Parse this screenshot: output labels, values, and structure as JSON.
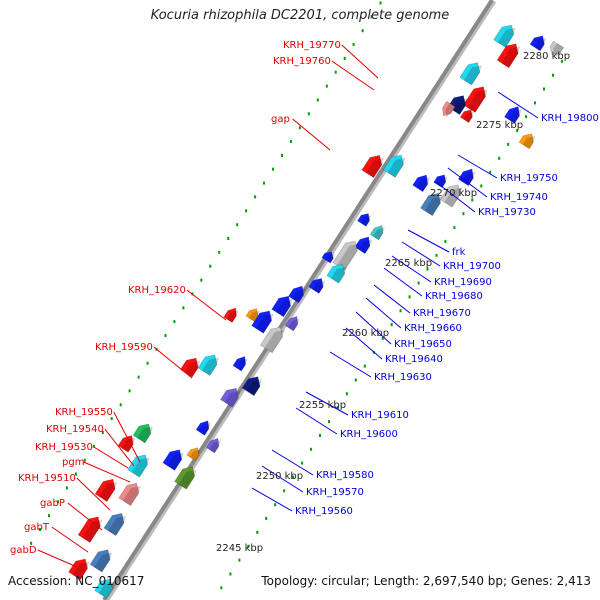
{
  "title": "Kocuria rhizophila DC2201, complete genome",
  "accession_label": "Accession: NC_010617",
  "topology_label": "Topology: circular; Length: 2,697,540 bp; Genes: 2,413",
  "kbp_ticks": [
    "2245 kbp",
    "2250 kbp",
    "2255 kbp",
    "2260 kbp",
    "2265 kbp",
    "2270 kbp",
    "2275 kbp",
    "2280 kbp"
  ],
  "colors": {
    "red_label": "#e00000",
    "blue_label": "#0000e0",
    "axis": "#888888",
    "tick_dot": "#00a000",
    "cyan": "#20d8f0",
    "red": "#ff1010",
    "blue": "#1020ff",
    "steel": "#4a7fbf",
    "navy": "#101a80",
    "gray": "#c8c8c8",
    "pink": "#f08a8a",
    "orange": "#ff9a10",
    "green": "#20c060",
    "olive": "#5a9a30",
    "lavender": "#7060e0",
    "teal": "#40c8c8"
  },
  "left_labels": [
    "KRH_19770",
    "KRH_19760",
    "gap",
    "KRH_19620",
    "KRH_19590",
    "KRH_19550",
    "KRH_19540",
    "KRH_19530",
    "pgm",
    "KRH_19510",
    "gabP",
    "gabT",
    "gabD"
  ],
  "right_labels": [
    "KRH_19800",
    "KRH_19750",
    "KRH_19740",
    "KRH_19730",
    "frk",
    "KRH_19700",
    "KRH_19690",
    "KRH_19680",
    "KRH_19670",
    "KRH_19660",
    "KRH_19650",
    "KRH_19640",
    "KRH_19630",
    "KRH_19610",
    "KRH_19600",
    "KRH_19580",
    "KRH_19570",
    "KRH_19560"
  ]
}
